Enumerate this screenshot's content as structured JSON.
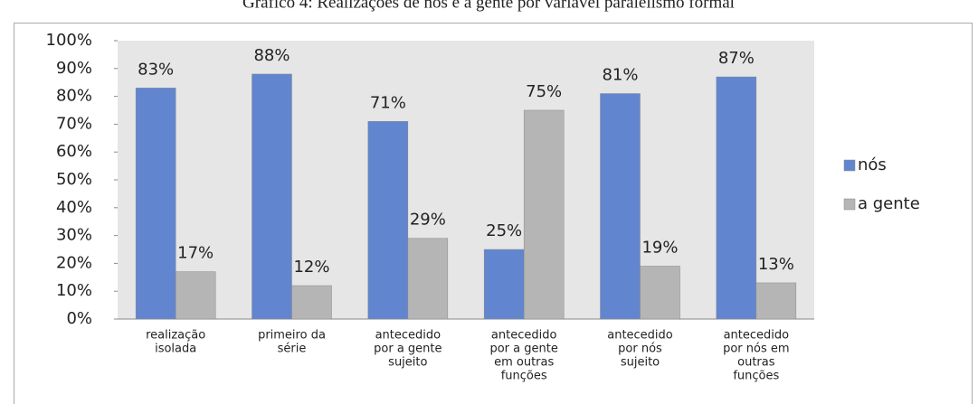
{
  "chart_data": {
    "type": "bar",
    "title": "Gráfico 4: Realizações de nós e a gente por variável paralelismo formal",
    "categories": [
      [
        "realização",
        "isolada"
      ],
      [
        "primeiro da",
        "série"
      ],
      [
        "antecedido",
        "por a gente",
        "sujeito"
      ],
      [
        "antecedido",
        "por a gente",
        "em outras",
        "funções"
      ],
      [
        "antecedido",
        "por nós",
        "sujeito"
      ],
      [
        "antecedido",
        "por nós em",
        "outras",
        "funções"
      ]
    ],
    "series": [
      {
        "name": "nós",
        "color": "#6285cf",
        "values": [
          83,
          88,
          71,
          25,
          81,
          87
        ],
        "value_labels": [
          "83%",
          "88%",
          "71%",
          "25%",
          "81%",
          "87%"
        ]
      },
      {
        "name": "a gente",
        "color": "#b5b5b5",
        "values": [
          17,
          12,
          29,
          75,
          19,
          13
        ],
        "value_labels": [
          "17%",
          "12%",
          "29%",
          "75%",
          "19%",
          "13%"
        ]
      }
    ],
    "ylim": [
      0,
      100
    ],
    "yticks": [
      {
        "value": 0,
        "label": "0%"
      },
      {
        "value": 10,
        "label": "10%"
      },
      {
        "value": 20,
        "label": "20%"
      },
      {
        "value": 30,
        "label": "30%"
      },
      {
        "value": 40,
        "label": "40%"
      },
      {
        "value": 50,
        "label": "50%"
      },
      {
        "value": 60,
        "label": "60%"
      },
      {
        "value": 70,
        "label": "70%"
      },
      {
        "value": 80,
        "label": "80%"
      },
      {
        "value": 90,
        "label": "90%"
      },
      {
        "value": 100,
        "label": "100%"
      }
    ],
    "legend": "right"
  }
}
